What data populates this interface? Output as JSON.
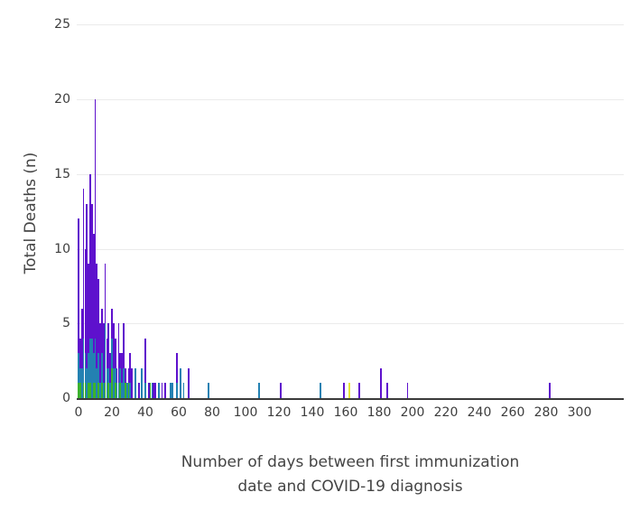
{
  "chart_data": {
    "type": "bar",
    "stacked": true,
    "title": "",
    "ylabel": "Total Deaths (n)",
    "xlabel_line1": "Number of days between first immunization",
    "xlabel_line2": "date and COVID-19 diagnosis",
    "xlim": [
      0,
      320
    ],
    "ylim": [
      0,
      25
    ],
    "xticks": [
      0,
      20,
      40,
      60,
      80,
      100,
      120,
      140,
      160,
      180,
      200,
      220,
      240,
      260,
      280,
      300
    ],
    "yticks": [
      0,
      5,
      10,
      15,
      20,
      25
    ],
    "grid": "horizontal-only",
    "legend": "none",
    "series_order": [
      "green",
      "teal",
      "purple",
      "yellow"
    ],
    "colors": {
      "green": "#3cb22c",
      "teal": "#2381b2",
      "purple": "#5e11cd",
      "yellow": "#e7e43c",
      "axis_line": "#3b3b3b",
      "grid_line": "#ebebeb",
      "tick_label": "#3d3d3d",
      "axis_title": "#444444",
      "background": "#ffffff"
    },
    "bars_format": [
      "day",
      "green",
      "teal",
      "purple",
      "yellow"
    ],
    "bars": [
      [
        0,
        1,
        2,
        9,
        0
      ],
      [
        1,
        1,
        1,
        2,
        0
      ],
      [
        2,
        0,
        2,
        4,
        0
      ],
      [
        3,
        1,
        3,
        10,
        0
      ],
      [
        4,
        1,
        2,
        7,
        0
      ],
      [
        5,
        0,
        2,
        11,
        0
      ],
      [
        6,
        1,
        2,
        6,
        0
      ],
      [
        7,
        1,
        3,
        11,
        0
      ],
      [
        8,
        0,
        4,
        9,
        0
      ],
      [
        9,
        1,
        2,
        8,
        0
      ],
      [
        10,
        1,
        3,
        16,
        0
      ],
      [
        11,
        0,
        2,
        7,
        0
      ],
      [
        12,
        1,
        2,
        5,
        0
      ],
      [
        13,
        0,
        1,
        4,
        0
      ],
      [
        14,
        1,
        2,
        3,
        0
      ],
      [
        15,
        0,
        1,
        4,
        0
      ],
      [
        16,
        1,
        4,
        4,
        0
      ],
      [
        17,
        0,
        2,
        2,
        0
      ],
      [
        18,
        1,
        1,
        3,
        0
      ],
      [
        19,
        0,
        1,
        2,
        0
      ],
      [
        20,
        2,
        2,
        2,
        0
      ],
      [
        21,
        0,
        2,
        3,
        0
      ],
      [
        22,
        1,
        1,
        2,
        0
      ],
      [
        23,
        0,
        1,
        1,
        0
      ],
      [
        24,
        0,
        1,
        4,
        0
      ],
      [
        25,
        1,
        1,
        1,
        0
      ],
      [
        26,
        0,
        1,
        2,
        0
      ],
      [
        27,
        0,
        2,
        3,
        0
      ],
      [
        28,
        1,
        0,
        1,
        0
      ],
      [
        29,
        0,
        1,
        0,
        0
      ],
      [
        30,
        1,
        0,
        1,
        0
      ],
      [
        31,
        0,
        1,
        2,
        0
      ],
      [
        32,
        0,
        0,
        2,
        0
      ],
      [
        34,
        0,
        2,
        0,
        0
      ],
      [
        36,
        0,
        0,
        1,
        0
      ],
      [
        38,
        0,
        2,
        0,
        0
      ],
      [
        40,
        0,
        1,
        3,
        0
      ],
      [
        42,
        0,
        0,
        1,
        0
      ],
      [
        43,
        1,
        0,
        0,
        0
      ],
      [
        44,
        0,
        1,
        0,
        0
      ],
      [
        45,
        0,
        0,
        1,
        0
      ],
      [
        46,
        0,
        0,
        1,
        0
      ],
      [
        48,
        0,
        1,
        0,
        0
      ],
      [
        50,
        0,
        0,
        1,
        0
      ],
      [
        52,
        0,
        0,
        1,
        0
      ],
      [
        55,
        0,
        1,
        0,
        0
      ],
      [
        56,
        0,
        1,
        0,
        0
      ],
      [
        59,
        0,
        1,
        2,
        0
      ],
      [
        61,
        0,
        2,
        0,
        0
      ],
      [
        63,
        0,
        1,
        0,
        0
      ],
      [
        66,
        0,
        0,
        2,
        0
      ],
      [
        78,
        0,
        1,
        0,
        0
      ],
      [
        108,
        0,
        1,
        0,
        0
      ],
      [
        121,
        0,
        0,
        1,
        0
      ],
      [
        145,
        0,
        1,
        0,
        0
      ],
      [
        159,
        0,
        0,
        1,
        0
      ],
      [
        162,
        0,
        0,
        0,
        1
      ],
      [
        168,
        0,
        0,
        1,
        0
      ],
      [
        181,
        0,
        0,
        2,
        0
      ],
      [
        185,
        0,
        0,
        1,
        0
      ],
      [
        197,
        0,
        0,
        1,
        0
      ],
      [
        282,
        0,
        0,
        1,
        0
      ]
    ]
  }
}
